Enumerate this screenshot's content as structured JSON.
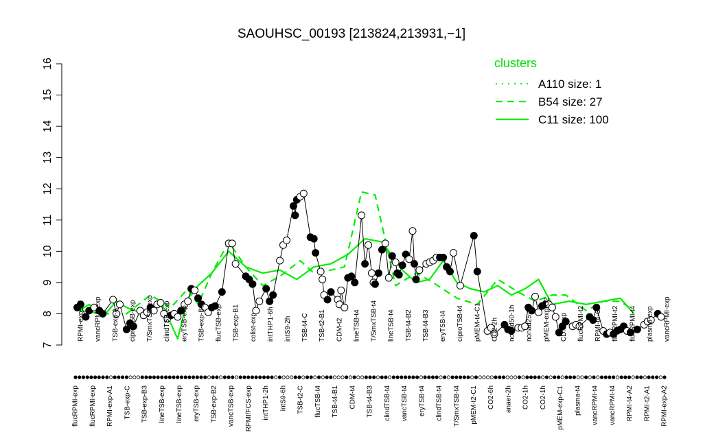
{
  "chart_data": {
    "type": "line",
    "title": "SAOUHSC_00193 [213824,213931,−1]",
    "xlabel": "",
    "ylabel": "",
    "ylim": [
      7,
      16
    ],
    "yticks": [
      7,
      8,
      9,
      10,
      11,
      12,
      13,
      14,
      15,
      16
    ],
    "grid": false,
    "legend": {
      "title": "clusters",
      "placement": "top-right",
      "items": [
        {
          "label": "A110 size: 1",
          "style": "dotted"
        },
        {
          "label": "B54 size: 27",
          "style": "dashed"
        },
        {
          "label": "C11 size: 100",
          "style": "solid"
        }
      ]
    },
    "line_color": "#00ee00",
    "point_fill_member": "#000000",
    "point_fill_other": "#ffffff",
    "top_labels": [
      "RPMI-exp-A2",
      "vancRPMI-exp",
      "TSB-exp-A",
      "ciproTSB-exp",
      "T/SmxTSB-exp",
      "clindTSB-exp",
      "eryTSB-exp",
      "TSB-exp-B3",
      "flucTSB-exp",
      "TSB-exp-B1",
      "colist-exp",
      "intTHP1-6h",
      "intS9-2h",
      "TSB-t4-C",
      "TSB-t2-B1",
      "CDM-t2",
      "lineTSB-t4",
      "T/SmxTSB-t4",
      "lineTSB-t4",
      "TSB-t4-B2",
      "TSB-t4-B3",
      "eryTSB-t4",
      "ciproTSB-t4",
      "pMEM-t4-C1",
      "CO2-2h",
      "nonad50-1h",
      "nonad25-1h",
      "pMEM-exp-C2",
      "CDM-exp",
      "flucRPMI-t2",
      "RPMI-t4-C2",
      "flucRPMI-t2",
      "flucRPMI-t4",
      "plasma-exp",
      "vancRPMI-exp"
    ],
    "bottom_labels": [
      "flucRPMI-exp",
      "flucRPMI-exp",
      "RPMI-exp-A1",
      "TSB-exp-C",
      "TSB-exp-B3",
      "lineTSB-exp",
      "lineTSB-exp",
      "eryTSB-exp",
      "TSB-exp-B2",
      "vancTSB-exp",
      "RPMI/FCS-exp",
      "intTHP1-2h",
      "intS9-6h",
      "TSB-t2-C",
      "flucTSB-t4",
      "TSB-t4-B1",
      "CDM-t4",
      "TSB-t4-B3",
      "clindTSB-t4",
      "vancTSB-t4",
      "eryTSB-t4",
      "clindTSB-t4",
      "T/SmxTSB-t4",
      "pMEM-t2-C1",
      "CO2-6h",
      "anaer-2h",
      "CO2-1h",
      "CO2-1h",
      "pMEM-exp-C1",
      "plasma-t4",
      "vancRPMI-t4",
      "vancRPMI-t4",
      "RPMI-t4-A2",
      "RPMI-t2-A1",
      "RPMI-exp-A2"
    ],
    "series": [
      {
        "name": "A110 size: 1",
        "style": "dotted",
        "values": []
      },
      {
        "name": "B54 size: 27",
        "style": "dashed",
        "x": [
          1,
          8,
          15,
          22,
          28,
          33,
          36,
          40,
          45,
          50,
          55,
          60,
          66,
          70,
          75,
          79,
          84,
          88,
          94,
          100,
          105,
          112,
          118,
          124,
          130,
          135,
          140,
          144,
          150,
          155,
          160,
          164
        ],
        "y": [
          8.1,
          8.0,
          8.0,
          8.6,
          8.2,
          8.8,
          8.3,
          9.3,
          10.3,
          9.5,
          8.9,
          9.2,
          9.7,
          9.3,
          9.4,
          9.5,
          11.9,
          11.8,
          8.9,
          9.3,
          9.0,
          8.5,
          8.3,
          9.1,
          8.7,
          8.4,
          8.6,
          8.6,
          8.1,
          8.4,
          8.4,
          8.1
        ]
      },
      {
        "name": "C11 size: 100",
        "style": "solid",
        "x": [
          1,
          4,
          8,
          12,
          15,
          20,
          25,
          30,
          33,
          36,
          40,
          45,
          50,
          55,
          60,
          65,
          70,
          75,
          80,
          85,
          90,
          96,
          100,
          104,
          108,
          112,
          116,
          120,
          124,
          128,
          132,
          136,
          140,
          145,
          150,
          155,
          160,
          164
        ],
        "y": [
          8.1,
          8.3,
          7.9,
          8.4,
          8.2,
          8.0,
          8.4,
          7.2,
          8.5,
          8.9,
          9.3,
          10.0,
          9.5,
          9.3,
          9.4,
          9.1,
          9.5,
          9.6,
          9.9,
          10.4,
          10.3,
          9.4,
          9.0,
          9.1,
          9.7,
          9.0,
          8.8,
          8.7,
          8.9,
          8.6,
          8.8,
          9.1,
          8.3,
          8.4,
          8.3,
          8.4,
          8.5,
          8.0
        ]
      }
    ],
    "points": [
      {
        "x": 0.5,
        "y": 8.2,
        "m": 1
      },
      {
        "x": 1.5,
        "y": 8.3,
        "m": 1
      },
      {
        "x": 3,
        "y": 7.9,
        "m": 1
      },
      {
        "x": 4,
        "y": 8.1,
        "m": 1
      },
      {
        "x": 5.5,
        "y": 8.2,
        "m": 0
      },
      {
        "x": 7,
        "y": 8.1,
        "m": 1
      },
      {
        "x": 8,
        "y": 8.0,
        "m": 1
      },
      {
        "x": 11,
        "y": 8.45,
        "m": 0
      },
      {
        "x": 12,
        "y": 8.0,
        "m": 0
      },
      {
        "x": 13,
        "y": 8.3,
        "m": 0
      },
      {
        "x": 15,
        "y": 7.5,
        "m": 1
      },
      {
        "x": 16,
        "y": 7.7,
        "m": 1
      },
      {
        "x": 17,
        "y": 7.6,
        "m": 1
      },
      {
        "x": 19,
        "y": 8.1,
        "m": 0
      },
      {
        "x": 20,
        "y": 7.95,
        "m": 0
      },
      {
        "x": 21,
        "y": 8.05,
        "m": 0
      },
      {
        "x": 22,
        "y": 8.2,
        "m": 1
      },
      {
        "x": 23,
        "y": 8.1,
        "m": 0
      },
      {
        "x": 24,
        "y": 8.3,
        "m": 0
      },
      {
        "x": 25,
        "y": 8.35,
        "m": 0
      },
      {
        "x": 26,
        "y": 8.0,
        "m": 0
      },
      {
        "x": 27,
        "y": 7.85,
        "m": 0
      },
      {
        "x": 28,
        "y": 7.95,
        "m": 1
      },
      {
        "x": 29,
        "y": 8.0,
        "m": 0
      },
      {
        "x": 30,
        "y": 7.9,
        "m": 0
      },
      {
        "x": 31,
        "y": 8.1,
        "m": 1
      },
      {
        "x": 32,
        "y": 8.3,
        "m": 0
      },
      {
        "x": 33,
        "y": 8.4,
        "m": 0
      },
      {
        "x": 34,
        "y": 8.8,
        "m": 1
      },
      {
        "x": 35,
        "y": 8.75,
        "m": 0
      },
      {
        "x": 36,
        "y": 8.5,
        "m": 1
      },
      {
        "x": 37,
        "y": 8.3,
        "m": 1
      },
      {
        "x": 38,
        "y": 8.2,
        "m": 0
      },
      {
        "x": 39,
        "y": 8.05,
        "m": 0
      },
      {
        "x": 40,
        "y": 8.2,
        "m": 1
      },
      {
        "x": 41,
        "y": 8.25,
        "m": 1
      },
      {
        "x": 43,
        "y": 8.7,
        "m": 1
      },
      {
        "x": 45,
        "y": 10.25,
        "m": 0
      },
      {
        "x": 46,
        "y": 10.25,
        "m": 0
      },
      {
        "x": 47,
        "y": 9.6,
        "m": 0
      },
      {
        "x": 50,
        "y": 9.2,
        "m": 1
      },
      {
        "x": 51,
        "y": 9.1,
        "m": 1
      },
      {
        "x": 52,
        "y": 8.95,
        "m": 1
      },
      {
        "x": 53,
        "y": 8.1,
        "m": 0
      },
      {
        "x": 54,
        "y": 8.4,
        "m": 0
      },
      {
        "x": 56,
        "y": 8.8,
        "m": 1
      },
      {
        "x": 57,
        "y": 8.4,
        "m": 1
      },
      {
        "x": 58,
        "y": 8.6,
        "m": 1
      },
      {
        "x": 60,
        "y": 9.7,
        "m": 0
      },
      {
        "x": 61,
        "y": 10.2,
        "m": 0
      },
      {
        "x": 62,
        "y": 10.35,
        "m": 0
      },
      {
        "x": 64,
        "y": 11.45,
        "m": 1
      },
      {
        "x": 64.5,
        "y": 11.15,
        "m": 1
      },
      {
        "x": 65,
        "y": 11.65,
        "m": 1
      },
      {
        "x": 66,
        "y": 11.75,
        "m": 0
      },
      {
        "x": 67,
        "y": 11.85,
        "m": 0
      },
      {
        "x": 69,
        "y": 10.45,
        "m": 1
      },
      {
        "x": 70,
        "y": 10.4,
        "m": 1
      },
      {
        "x": 70.5,
        "y": 9.95,
        "m": 1
      },
      {
        "x": 72,
        "y": 9.35,
        "m": 0
      },
      {
        "x": 72.5,
        "y": 9.1,
        "m": 0
      },
      {
        "x": 73,
        "y": 8.6,
        "m": 0
      },
      {
        "x": 74,
        "y": 8.45,
        "m": 1
      },
      {
        "x": 75,
        "y": 8.7,
        "m": 1
      },
      {
        "x": 77,
        "y": 8.45,
        "m": 0
      },
      {
        "x": 77.5,
        "y": 8.3,
        "m": 0
      },
      {
        "x": 78,
        "y": 8.75,
        "m": 0
      },
      {
        "x": 79,
        "y": 8.2,
        "m": 0
      },
      {
        "x": 80,
        "y": 9.15,
        "m": 1
      },
      {
        "x": 81,
        "y": 9.2,
        "m": 1
      },
      {
        "x": 82,
        "y": 9.0,
        "m": 1
      },
      {
        "x": 84,
        "y": 11.15,
        "m": 0
      },
      {
        "x": 85,
        "y": 9.6,
        "m": 1
      },
      {
        "x": 86,
        "y": 10.2,
        "m": 0
      },
      {
        "x": 87,
        "y": 9.3,
        "m": 0
      },
      {
        "x": 87.5,
        "y": 9.0,
        "m": 0
      },
      {
        "x": 88,
        "y": 8.95,
        "m": 1
      },
      {
        "x": 89,
        "y": 9.3,
        "m": 1
      },
      {
        "x": 90,
        "y": 10.05,
        "m": 1
      },
      {
        "x": 91,
        "y": 10.25,
        "m": 0
      },
      {
        "x": 92,
        "y": 9.15,
        "m": 0
      },
      {
        "x": 93,
        "y": 9.85,
        "m": 1
      },
      {
        "x": 94,
        "y": 9.65,
        "m": 0
      },
      {
        "x": 94.5,
        "y": 9.3,
        "m": 1
      },
      {
        "x": 95,
        "y": 9.25,
        "m": 1
      },
      {
        "x": 96,
        "y": 9.55,
        "m": 1
      },
      {
        "x": 97,
        "y": 9.9,
        "m": 1
      },
      {
        "x": 98,
        "y": 9.75,
        "m": 0
      },
      {
        "x": 99,
        "y": 10.65,
        "m": 0
      },
      {
        "x": 99.5,
        "y": 9.6,
        "m": 1
      },
      {
        "x": 100,
        "y": 9.1,
        "m": 1
      },
      {
        "x": 101,
        "y": 9.4,
        "m": 0
      },
      {
        "x": 103,
        "y": 9.6,
        "m": 0
      },
      {
        "x": 104,
        "y": 9.65,
        "m": 0
      },
      {
        "x": 105,
        "y": 9.7,
        "m": 0
      },
      {
        "x": 106,
        "y": 9.8,
        "m": 0
      },
      {
        "x": 107,
        "y": 9.8,
        "m": 1
      },
      {
        "x": 108,
        "y": 9.8,
        "m": 1
      },
      {
        "x": 109,
        "y": 9.5,
        "m": 1
      },
      {
        "x": 110,
        "y": 9.35,
        "m": 1
      },
      {
        "x": 111,
        "y": 9.95,
        "m": 0
      },
      {
        "x": 113,
        "y": 8.9,
        "m": 0
      },
      {
        "x": 117,
        "y": 10.5,
        "m": 1
      },
      {
        "x": 118,
        "y": 9.35,
        "m": 1
      },
      {
        "x": 121,
        "y": 7.45,
        "m": 0
      },
      {
        "x": 122,
        "y": 7.55,
        "m": 0
      },
      {
        "x": 123,
        "y": 7.35,
        "m": 0
      },
      {
        "x": 126,
        "y": 7.65,
        "m": 1
      },
      {
        "x": 127,
        "y": 7.5,
        "m": 1
      },
      {
        "x": 128,
        "y": 7.45,
        "m": 1
      },
      {
        "x": 130,
        "y": 7.55,
        "m": 0
      },
      {
        "x": 131,
        "y": 7.55,
        "m": 0
      },
      {
        "x": 132,
        "y": 7.6,
        "m": 0
      },
      {
        "x": 133,
        "y": 8.2,
        "m": 1
      },
      {
        "x": 134,
        "y": 8.1,
        "m": 1
      },
      {
        "x": 135,
        "y": 8.55,
        "m": 0
      },
      {
        "x": 136,
        "y": 8.05,
        "m": 0
      },
      {
        "x": 137,
        "y": 8.25,
        "m": 1
      },
      {
        "x": 138,
        "y": 8.3,
        "m": 1
      },
      {
        "x": 139,
        "y": 8.3,
        "m": 0
      },
      {
        "x": 140,
        "y": 8.2,
        "m": 0
      },
      {
        "x": 141,
        "y": 7.9,
        "m": 0
      },
      {
        "x": 142,
        "y": 7.4,
        "m": 1
      },
      {
        "x": 143,
        "y": 7.6,
        "m": 1
      },
      {
        "x": 144,
        "y": 7.75,
        "m": 1
      },
      {
        "x": 146,
        "y": 7.6,
        "m": 0
      },
      {
        "x": 147,
        "y": 7.65,
        "m": 0
      },
      {
        "x": 148,
        "y": 7.6,
        "m": 0
      },
      {
        "x": 151,
        "y": 7.9,
        "m": 1
      },
      {
        "x": 152,
        "y": 7.8,
        "m": 1
      },
      {
        "x": 153,
        "y": 8.2,
        "m": 1
      },
      {
        "x": 155,
        "y": 7.45,
        "m": 0
      },
      {
        "x": 156,
        "y": 7.35,
        "m": 1
      },
      {
        "x": 157,
        "y": 7.4,
        "m": 0
      },
      {
        "x": 158,
        "y": 7.35,
        "m": 1
      },
      {
        "x": 159,
        "y": 7.45,
        "m": 1
      },
      {
        "x": 160,
        "y": 7.5,
        "m": 1
      },
      {
        "x": 161,
        "y": 7.6,
        "m": 1
      },
      {
        "x": 162,
        "y": 7.45,
        "m": 0
      },
      {
        "x": 163,
        "y": 7.4,
        "m": 1
      },
      {
        "x": 165,
        "y": 7.5,
        "m": 1
      },
      {
        "x": 167,
        "y": 7.65,
        "m": 0
      },
      {
        "x": 168,
        "y": 7.75,
        "m": 0
      },
      {
        "x": 169,
        "y": 7.8,
        "m": 0
      },
      {
        "x": 171,
        "y": 8.0,
        "m": 1
      },
      {
        "x": 172,
        "y": 7.9,
        "m": 0
      }
    ],
    "rug_pattern": "1111111110111100011111111111111111011011101111111110100011011010110001010011101101111111011110101111101000011100010111101011011100101011110111011011101"
  }
}
